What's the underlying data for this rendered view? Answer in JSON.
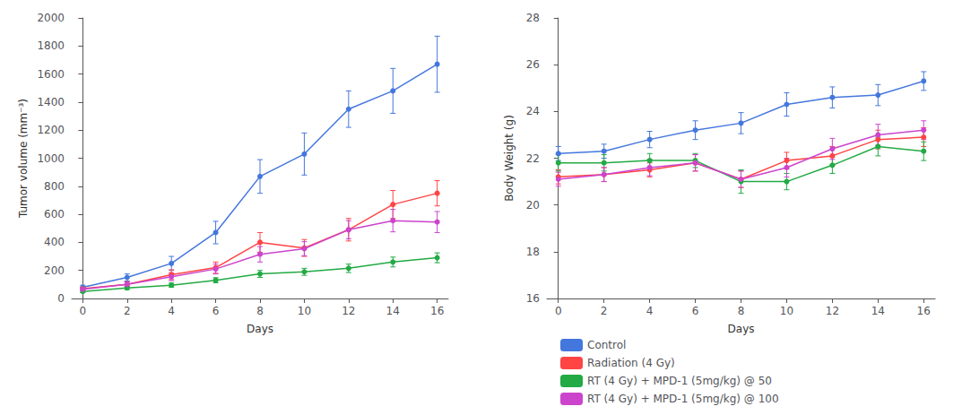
{
  "chart_data": [
    {
      "type": "line",
      "xlabel": "Days",
      "ylabel": "Tumor volume (mm⁻³)",
      "x": [
        0,
        2,
        4,
        6,
        8,
        10,
        12,
        14,
        16
      ],
      "xlim": [
        -0.5,
        16.5
      ],
      "xticks": [
        0,
        2,
        4,
        6,
        8,
        10,
        12,
        14,
        16
      ],
      "ylim": [
        0,
        2000
      ],
      "yticks": [
        0,
        200,
        400,
        600,
        800,
        1000,
        1200,
        1400,
        1600,
        1800,
        2000
      ],
      "grid": false,
      "marker": "circle",
      "series": [
        {
          "name": "Control",
          "color": "#4477dd",
          "values": [
            80,
            150,
            250,
            470,
            870,
            1030,
            1350,
            1480,
            1670
          ],
          "errors": [
            15,
            25,
            50,
            80,
            120,
            150,
            130,
            160,
            200
          ]
        },
        {
          "name": "Radiation (4 Gy)",
          "color": "#ff4444",
          "values": [
            70,
            100,
            170,
            220,
            400,
            360,
            490,
            670,
            750
          ],
          "errors": [
            10,
            20,
            35,
            40,
            70,
            60,
            80,
            100,
            90
          ]
        },
        {
          "name": "RT (4 Gy) + MPD-1 (5mg/kg) @ 50",
          "color": "#22aa44",
          "values": [
            50,
            75,
            95,
            130,
            175,
            190,
            215,
            260,
            290
          ],
          "errors": [
            8,
            12,
            15,
            18,
            25,
            25,
            30,
            35,
            35
          ]
        },
        {
          "name": "RT (4 Gy) + MPD-1 (5mg/kg) @ 100",
          "color": "#cc44cc",
          "values": [
            65,
            100,
            155,
            210,
            315,
            355,
            490,
            555,
            545
          ],
          "errors": [
            10,
            18,
            28,
            35,
            55,
            50,
            65,
            80,
            75
          ]
        }
      ]
    },
    {
      "type": "line",
      "xlabel": "Days",
      "ylabel": "Body Weight (g)",
      "x": [
        0,
        2,
        4,
        6,
        8,
        10,
        12,
        14,
        16
      ],
      "xlim": [
        -0.5,
        16.5
      ],
      "xticks": [
        0,
        2,
        4,
        6,
        8,
        10,
        12,
        14,
        16
      ],
      "ylim": [
        16,
        28
      ],
      "yticks": [
        16,
        18,
        20,
        22,
        24,
        26,
        28
      ],
      "grid": false,
      "marker": "circle",
      "legend": "lower right",
      "series": [
        {
          "name": "Control",
          "color": "#4477dd",
          "values": [
            22.2,
            22.3,
            22.8,
            23.2,
            23.5,
            24.3,
            24.6,
            24.7,
            25.3
          ],
          "errors": [
            0.3,
            0.3,
            0.35,
            0.4,
            0.45,
            0.5,
            0.45,
            0.45,
            0.4
          ]
        },
        {
          "name": "Radiation (4 Gy)",
          "color": "#ff4444",
          "values": [
            21.2,
            21.3,
            21.5,
            21.8,
            21.1,
            21.9,
            22.1,
            22.8,
            22.9
          ],
          "errors": [
            0.3,
            0.3,
            0.3,
            0.35,
            0.35,
            0.35,
            0.4,
            0.4,
            0.4
          ]
        },
        {
          "name": "RT (4 Gy) + MPD-1 (5mg/kg) @ 50",
          "color": "#22aa44",
          "values": [
            21.8,
            21.8,
            21.9,
            21.9,
            21.0,
            21.0,
            21.7,
            22.5,
            22.3
          ],
          "errors": [
            0.35,
            0.35,
            0.3,
            0.3,
            0.5,
            0.35,
            0.35,
            0.4,
            0.4
          ]
        },
        {
          "name": "RT (4 Gy) + MPD-1 (5mg/kg) @ 100",
          "color": "#cc44cc",
          "values": [
            21.1,
            21.3,
            21.6,
            21.8,
            21.1,
            21.6,
            22.4,
            23.0,
            23.2
          ],
          "errors": [
            0.3,
            0.3,
            0.35,
            0.35,
            0.35,
            0.4,
            0.45,
            0.45,
            0.4
          ]
        }
      ]
    }
  ]
}
